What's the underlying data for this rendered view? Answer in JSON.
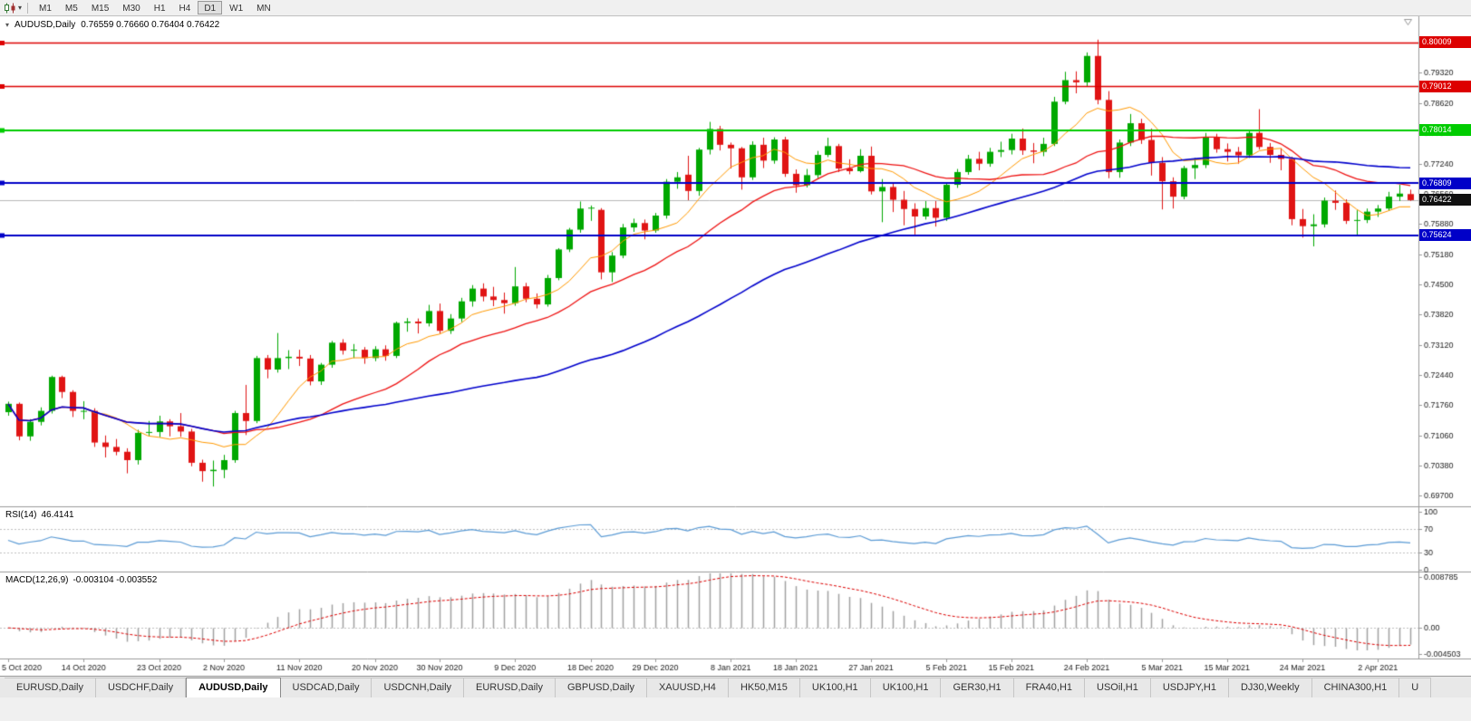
{
  "toolbar": {
    "timeframes": [
      "M1",
      "M5",
      "M15",
      "M30",
      "H1",
      "H4",
      "D1",
      "W1",
      "MN"
    ],
    "active_timeframe": "D1"
  },
  "chart": {
    "title": "AUDUSD,Daily",
    "ohlc_label": "0.76559 0.76660 0.76404 0.76422"
  },
  "indicators": {
    "rsi": {
      "label": "RSI(14)",
      "value": "46.4141",
      "scale": [
        {
          "label": "100",
          "value": 100
        },
        {
          "label": "70",
          "value": 70
        },
        {
          "label": "30",
          "value": 30
        },
        {
          "label": "0",
          "value": 0
        }
      ]
    },
    "macd": {
      "label": "MACD(12,26,9)",
      "values": "-0.003104 -0.003552",
      "scale": [
        {
          "label": "0.008785",
          "value": 0.008785
        },
        {
          "label": "0.00",
          "value": 0
        },
        {
          "label": "-0.004503",
          "value": -0.004503
        }
      ]
    }
  },
  "price_axis": [
    "0.79320",
    "0.78620",
    "0.77940",
    "0.77240",
    "0.76560",
    "0.75880",
    "0.75180",
    "0.74500",
    "0.73820",
    "0.73120",
    "0.72440",
    "0.71760",
    "0.71060",
    "0.70380",
    "0.69700"
  ],
  "hlines": [
    {
      "price": 0.80009,
      "label": "0.80009",
      "color": "#dd0000",
      "width": 1.5
    },
    {
      "price": 0.79012,
      "label": "0.79012",
      "color": "#dd0000",
      "width": 1.5
    },
    {
      "price": 0.78014,
      "label": "0.78014",
      "color": "#00cc00",
      "width": 2
    },
    {
      "price": 0.76809,
      "label": "0.76809",
      "color": "#0000c8",
      "width": 2
    },
    {
      "price": 0.75624,
      "label": "0.75624",
      "color": "#0000c8",
      "width": 2
    }
  ],
  "current_price": {
    "price": 0.76422,
    "label": "0.76422",
    "line_color": "#b8b8b8",
    "tag_bg": "#111111"
  },
  "date_axis": [
    {
      "label": "5 Oct 2020",
      "index": 0
    },
    {
      "label": "14 Oct 2020",
      "index": 7
    },
    {
      "label": "23 Oct 2020",
      "index": 14
    },
    {
      "label": "2 Nov 2020",
      "index": 20
    },
    {
      "label": "11 Nov 2020",
      "index": 27
    },
    {
      "label": "20 Nov 2020",
      "index": 34
    },
    {
      "label": "30 Nov 2020",
      "index": 40
    },
    {
      "label": "9 Dec 2020",
      "index": 47
    },
    {
      "label": "18 Dec 2020",
      "index": 54
    },
    {
      "label": "29 Dec 2020",
      "index": 60
    },
    {
      "label": "8 Jan 2021",
      "index": 67
    },
    {
      "label": "18 Jan 2021",
      "index": 73
    },
    {
      "label": "27 Jan 2021",
      "index": 80
    },
    {
      "label": "5 Feb 2021",
      "index": 87
    },
    {
      "label": "15 Feb 2021",
      "index": 93
    },
    {
      "label": "24 Feb 2021",
      "index": 100
    },
    {
      "label": "5 Mar 2021",
      "index": 107
    },
    {
      "label": "15 Mar 2021",
      "index": 113
    },
    {
      "label": "24 Mar 2021",
      "index": 120
    },
    {
      "label": "2 Apr 2021",
      "index": 127
    }
  ],
  "tabs": {
    "active_index": 2,
    "items": [
      "EURUSD,Daily",
      "USDCHF,Daily",
      "AUDUSD,Daily",
      "USDCAD,Daily",
      "USDCNH,Daily",
      "EURUSD,Daily",
      "GBPUSD,Daily",
      "XAUUSD,H4",
      "HK50,M15",
      "UK100,H1",
      "UK100,H1",
      "GER30,H1",
      "FRA40,H1",
      "USOil,H1",
      "USDJPY,H1",
      "DJ30,Weekly",
      "CHINA300,H1",
      "U"
    ]
  },
  "chart_data": {
    "type": "candlestick",
    "symbol": "AUDUSD",
    "timeframe": "Daily",
    "price_scale": {
      "max": 0.8056,
      "min": 0.6948
    },
    "colors": {
      "bull": "#00a800",
      "bear": "#e01414"
    },
    "moving_averages": [
      {
        "period": 8,
        "color": "#ff9900",
        "width": 1
      },
      {
        "period": 20,
        "color": "#ee1111",
        "width": 1.3
      },
      {
        "period": 50,
        "color": "#0000cc",
        "width": 1.6
      }
    ],
    "rsi": {
      "period": 14,
      "color": "#5b9bd5",
      "levels": [
        70,
        30
      ]
    },
    "macd": {
      "fast": 12,
      "slow": 26,
      "signal": 9,
      "hist_color": "#a0a0a0",
      "signal_color": "#dd0000"
    },
    "ohlc": [
      [
        0.716,
        0.7184,
        0.7152,
        0.7179
      ],
      [
        0.7179,
        0.7182,
        0.7096,
        0.7105
      ],
      [
        0.7105,
        0.7144,
        0.7095,
        0.7138
      ],
      [
        0.7138,
        0.7171,
        0.713,
        0.7163
      ],
      [
        0.7163,
        0.7243,
        0.7157,
        0.724
      ],
      [
        0.724,
        0.7243,
        0.7192,
        0.7206
      ],
      [
        0.7206,
        0.721,
        0.7149,
        0.7163
      ],
      [
        0.7163,
        0.7185,
        0.7144,
        0.7163
      ],
      [
        0.7163,
        0.7169,
        0.7081,
        0.7091
      ],
      [
        0.7091,
        0.7107,
        0.7057,
        0.7081
      ],
      [
        0.7081,
        0.7099,
        0.7062,
        0.707
      ],
      [
        0.707,
        0.7078,
        0.7021,
        0.7051
      ],
      [
        0.7051,
        0.712,
        0.7041,
        0.7113
      ],
      [
        0.7113,
        0.714,
        0.7105,
        0.7115
      ],
      [
        0.7115,
        0.7152,
        0.7103,
        0.7139
      ],
      [
        0.7139,
        0.7144,
        0.7105,
        0.7128
      ],
      [
        0.7128,
        0.7158,
        0.7104,
        0.7116
      ],
      [
        0.7116,
        0.7122,
        0.7037,
        0.7045
      ],
      [
        0.7045,
        0.7052,
        0.7002,
        0.7026
      ],
      [
        0.7026,
        0.705,
        0.6991,
        0.7029
      ],
      [
        0.7029,
        0.7063,
        0.701,
        0.7051
      ],
      [
        0.7051,
        0.7163,
        0.7045,
        0.7158
      ],
      [
        0.7158,
        0.7222,
        0.7108,
        0.714
      ],
      [
        0.714,
        0.7288,
        0.7135,
        0.7283
      ],
      [
        0.7283,
        0.729,
        0.7237,
        0.7257
      ],
      [
        0.7257,
        0.734,
        0.725,
        0.7283
      ],
      [
        0.7283,
        0.7301,
        0.7258,
        0.7286
      ],
      [
        0.7286,
        0.7302,
        0.7265,
        0.7282
      ],
      [
        0.7282,
        0.729,
        0.7221,
        0.723
      ],
      [
        0.723,
        0.7272,
        0.7222,
        0.7268
      ],
      [
        0.7268,
        0.7322,
        0.7261,
        0.7318
      ],
      [
        0.7318,
        0.7326,
        0.7291,
        0.73
      ],
      [
        0.73,
        0.7315,
        0.7283,
        0.7302
      ],
      [
        0.7302,
        0.7308,
        0.727,
        0.7283
      ],
      [
        0.7283,
        0.731,
        0.7276,
        0.7303
      ],
      [
        0.7303,
        0.7312,
        0.7277,
        0.7288
      ],
      [
        0.7288,
        0.7366,
        0.7283,
        0.7363
      ],
      [
        0.7363,
        0.7374,
        0.7343,
        0.7366
      ],
      [
        0.7366,
        0.7373,
        0.7339,
        0.7362
      ],
      [
        0.7362,
        0.7404,
        0.7355,
        0.739
      ],
      [
        0.739,
        0.7407,
        0.7339,
        0.7345
      ],
      [
        0.7345,
        0.7383,
        0.7338,
        0.7373
      ],
      [
        0.7373,
        0.742,
        0.7365,
        0.7412
      ],
      [
        0.7412,
        0.7449,
        0.74,
        0.7441
      ],
      [
        0.7441,
        0.7453,
        0.7412,
        0.7423
      ],
      [
        0.7423,
        0.7445,
        0.7401,
        0.7415
      ],
      [
        0.7415,
        0.7432,
        0.7384,
        0.7408
      ],
      [
        0.7408,
        0.749,
        0.7402,
        0.7446
      ],
      [
        0.7446,
        0.7454,
        0.741,
        0.7418
      ],
      [
        0.7418,
        0.743,
        0.7396,
        0.7405
      ],
      [
        0.7405,
        0.7472,
        0.74,
        0.7465
      ],
      [
        0.7465,
        0.7533,
        0.746,
        0.753
      ],
      [
        0.753,
        0.7579,
        0.7524,
        0.7575
      ],
      [
        0.7575,
        0.7639,
        0.7568,
        0.7623
      ],
      [
        0.7623,
        0.763,
        0.7595,
        0.7625
      ],
      [
        0.762,
        0.7624,
        0.7462,
        0.7478
      ],
      [
        0.7478,
        0.7524,
        0.7456,
        0.7516
      ],
      [
        0.7516,
        0.7588,
        0.751,
        0.758
      ],
      [
        0.758,
        0.76,
        0.757,
        0.759
      ],
      [
        0.759,
        0.7598,
        0.7553,
        0.7573
      ],
      [
        0.7573,
        0.7613,
        0.7568,
        0.7607
      ],
      [
        0.7607,
        0.769,
        0.76,
        0.7684
      ],
      [
        0.7684,
        0.7706,
        0.7668,
        0.7694
      ],
      [
        0.77,
        0.7743,
        0.7642,
        0.7663
      ],
      [
        0.7663,
        0.7761,
        0.7652,
        0.7757
      ],
      [
        0.7757,
        0.782,
        0.7746,
        0.7804
      ],
      [
        0.7804,
        0.7811,
        0.7755,
        0.7768
      ],
      [
        0.7768,
        0.7773,
        0.7714,
        0.776
      ],
      [
        0.776,
        0.7763,
        0.7666,
        0.7694
      ],
      [
        0.7694,
        0.7776,
        0.7688,
        0.7768
      ],
      [
        0.7768,
        0.7784,
        0.7715,
        0.7732
      ],
      [
        0.7732,
        0.7785,
        0.7725,
        0.778
      ],
      [
        0.778,
        0.7786,
        0.7695,
        0.7702
      ],
      [
        0.7702,
        0.7712,
        0.7659,
        0.7676
      ],
      [
        0.7676,
        0.7713,
        0.7671,
        0.7699
      ],
      [
        0.7699,
        0.7754,
        0.7692,
        0.7745
      ],
      [
        0.7745,
        0.7784,
        0.774,
        0.7765
      ],
      [
        0.7765,
        0.777,
        0.7706,
        0.7714
      ],
      [
        0.7714,
        0.7735,
        0.7701,
        0.7708
      ],
      [
        0.7708,
        0.7758,
        0.7705,
        0.7743
      ],
      [
        0.7743,
        0.7764,
        0.7655,
        0.7662
      ],
      [
        0.7662,
        0.769,
        0.7592,
        0.7672
      ],
      [
        0.7672,
        0.768,
        0.7615,
        0.7643
      ],
      [
        0.7643,
        0.7663,
        0.7585,
        0.7622
      ],
      [
        0.7622,
        0.7635,
        0.7564,
        0.7605
      ],
      [
        0.7605,
        0.764,
        0.7598,
        0.7624
      ],
      [
        0.7624,
        0.764,
        0.7582,
        0.7602
      ],
      [
        0.7602,
        0.7682,
        0.7595,
        0.7677
      ],
      [
        0.7677,
        0.7713,
        0.767,
        0.7706
      ],
      [
        0.7706,
        0.7745,
        0.77,
        0.7736
      ],
      [
        0.7736,
        0.7752,
        0.771,
        0.7725
      ],
      [
        0.7725,
        0.7761,
        0.7718,
        0.7752
      ],
      [
        0.7752,
        0.7775,
        0.774,
        0.7756
      ],
      [
        0.7756,
        0.7793,
        0.7746,
        0.7782
      ],
      [
        0.7782,
        0.7805,
        0.7745,
        0.7755
      ],
      [
        0.7755,
        0.7772,
        0.7726,
        0.7752
      ],
      [
        0.7752,
        0.7784,
        0.7742,
        0.777
      ],
      [
        0.777,
        0.7877,
        0.7765,
        0.7866
      ],
      [
        0.7866,
        0.7934,
        0.786,
        0.7915
      ],
      [
        0.7915,
        0.7935,
        0.7885,
        0.791
      ],
      [
        0.791,
        0.7978,
        0.79,
        0.797
      ],
      [
        0.797,
        0.8007,
        0.786,
        0.787
      ],
      [
        0.787,
        0.789,
        0.7692,
        0.7706
      ],
      [
        0.7706,
        0.778,
        0.7693,
        0.7773
      ],
      [
        0.7773,
        0.7838,
        0.7765,
        0.7817
      ],
      [
        0.7817,
        0.7827,
        0.777,
        0.7779
      ],
      [
        0.7779,
        0.7805,
        0.7698,
        0.7727
      ],
      [
        0.7727,
        0.774,
        0.7621,
        0.7685
      ],
      [
        0.7685,
        0.7694,
        0.7623,
        0.765
      ],
      [
        0.765,
        0.772,
        0.7644,
        0.7715
      ],
      [
        0.7715,
        0.7738,
        0.769,
        0.7722
      ],
      [
        0.7722,
        0.7795,
        0.7715,
        0.7786
      ],
      [
        0.7786,
        0.7793,
        0.775,
        0.7758
      ],
      [
        0.7758,
        0.7771,
        0.773,
        0.7752
      ],
      [
        0.7752,
        0.7763,
        0.7725,
        0.7744
      ],
      [
        0.7744,
        0.7801,
        0.7738,
        0.7795
      ],
      [
        0.7795,
        0.7849,
        0.7757,
        0.7763
      ],
      [
        0.7763,
        0.7772,
        0.7727,
        0.7745
      ],
      [
        0.7745,
        0.776,
        0.771,
        0.7736
      ],
      [
        0.7736,
        0.7741,
        0.7585,
        0.7599
      ],
      [
        0.7599,
        0.7622,
        0.7557,
        0.7583
      ],
      [
        0.7583,
        0.761,
        0.7537,
        0.7587
      ],
      [
        0.7587,
        0.7648,
        0.758,
        0.7641
      ],
      [
        0.7641,
        0.7664,
        0.762,
        0.7636
      ],
      [
        0.7636,
        0.7644,
        0.7588,
        0.7595
      ],
      [
        0.7595,
        0.7619,
        0.7562,
        0.7597
      ],
      [
        0.7597,
        0.7623,
        0.759,
        0.7616
      ],
      [
        0.7616,
        0.7631,
        0.7604,
        0.7623
      ],
      [
        0.7623,
        0.7661,
        0.7618,
        0.765
      ],
      [
        0.765,
        0.7677,
        0.764,
        0.7657
      ],
      [
        0.76559,
        0.7666,
        0.76404,
        0.76422
      ]
    ]
  }
}
